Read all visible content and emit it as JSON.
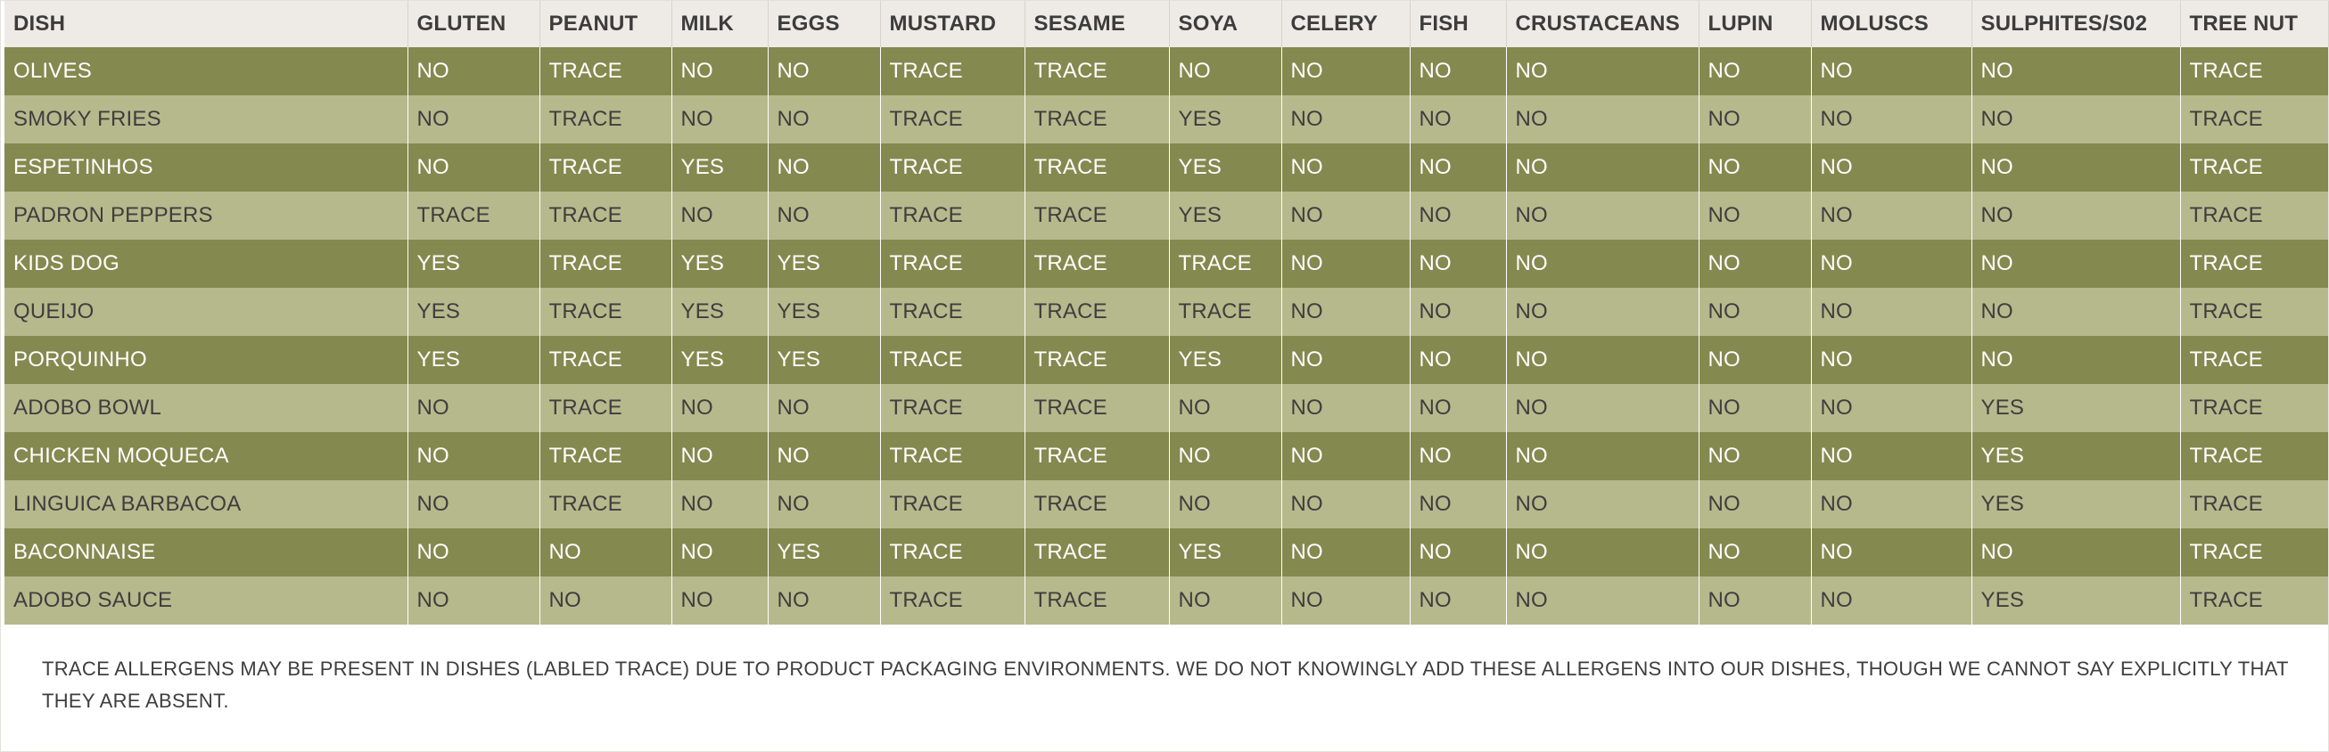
{
  "headers": [
    "DISH",
    "GLUTEN",
    "PEANUT",
    "MILK",
    "EGGS",
    "MUSTARD",
    "SESAME",
    "SOYA",
    "CELERY",
    "FISH",
    "CRUSTACEANS",
    "LUPIN",
    "MOLUSCS",
    "SULPHITES/S02",
    "TREE NUT"
  ],
  "rows": [
    [
      "OLIVES",
      "NO",
      "TRACE",
      "NO",
      "NO",
      "TRACE",
      "TRACE",
      "NO",
      "NO",
      "NO",
      "NO",
      "NO",
      "NO",
      "NO",
      "TRACE"
    ],
    [
      "SMOKY FRIES",
      "NO",
      "TRACE",
      "NO",
      "NO",
      "TRACE",
      "TRACE",
      "YES",
      "NO",
      "NO",
      "NO",
      "NO",
      "NO",
      "NO",
      "TRACE"
    ],
    [
      "ESPETINHOS",
      "NO",
      "TRACE",
      "YES",
      "NO",
      "TRACE",
      "TRACE",
      "YES",
      "NO",
      "NO",
      "NO",
      "NO",
      "NO",
      "NO",
      "TRACE"
    ],
    [
      "PADRON PEPPERS",
      "TRACE",
      "TRACE",
      "NO",
      "NO",
      "TRACE",
      "TRACE",
      "YES",
      "NO",
      "NO",
      "NO",
      "NO",
      "NO",
      "NO",
      "TRACE"
    ],
    [
      "KIDS DOG",
      "YES",
      "TRACE",
      "YES",
      "YES",
      "TRACE",
      "TRACE",
      "TRACE",
      "NO",
      "NO",
      "NO",
      "NO",
      "NO",
      "NO",
      "TRACE"
    ],
    [
      "QUEIJO",
      "YES",
      "TRACE",
      "YES",
      "YES",
      "TRACE",
      "TRACE",
      "TRACE",
      "NO",
      "NO",
      "NO",
      "NO",
      "NO",
      "NO",
      "TRACE"
    ],
    [
      "PORQUINHO",
      "YES",
      "TRACE",
      "YES",
      "YES",
      "TRACE",
      "TRACE",
      "YES",
      "NO",
      "NO",
      "NO",
      "NO",
      "NO",
      "NO",
      "TRACE"
    ],
    [
      "ADOBO BOWL",
      "NO",
      "TRACE",
      "NO",
      "NO",
      "TRACE",
      "TRACE",
      "NO",
      "NO",
      "NO",
      "NO",
      "NO",
      "NO",
      "YES",
      "TRACE"
    ],
    [
      "CHICKEN MOQUECA",
      "NO",
      "TRACE",
      "NO",
      "NO",
      "TRACE",
      "TRACE",
      "NO",
      "NO",
      "NO",
      "NO",
      "NO",
      "NO",
      "YES",
      "TRACE"
    ],
    [
      "LINGUICA BARBACOA",
      "NO",
      "TRACE",
      "NO",
      "NO",
      "TRACE",
      "TRACE",
      "NO",
      "NO",
      "NO",
      "NO",
      "NO",
      "NO",
      "YES",
      "TRACE"
    ],
    [
      "BACONNAISE",
      "NO",
      "NO",
      "NO",
      "YES",
      "TRACE",
      "TRACE",
      "YES",
      "NO",
      "NO",
      "NO",
      "NO",
      "NO",
      "NO",
      "TRACE"
    ],
    [
      "ADOBO SAUCE",
      "NO",
      "NO",
      "NO",
      "NO",
      "TRACE",
      "TRACE",
      "NO",
      "NO",
      "NO",
      "NO",
      "NO",
      "NO",
      "YES",
      "TRACE"
    ]
  ],
  "footnote": "TRACE ALLERGENS MAY BE PRESENT IN  DISHES (LABLED TRACE) DUE TO PRODUCT PACKAGING ENVIRONMENTS. WE DO NOT KNOWINGLY ADD THESE ALLERGENS INTO OUR DISHES, THOUGH WE CANNOT SAY EXPLICITLY THAT THEY ARE ABSENT.",
  "colors": {
    "header_bg": "#eeebe6",
    "row_dark": "#84894f",
    "row_light": "#b6b98c"
  }
}
